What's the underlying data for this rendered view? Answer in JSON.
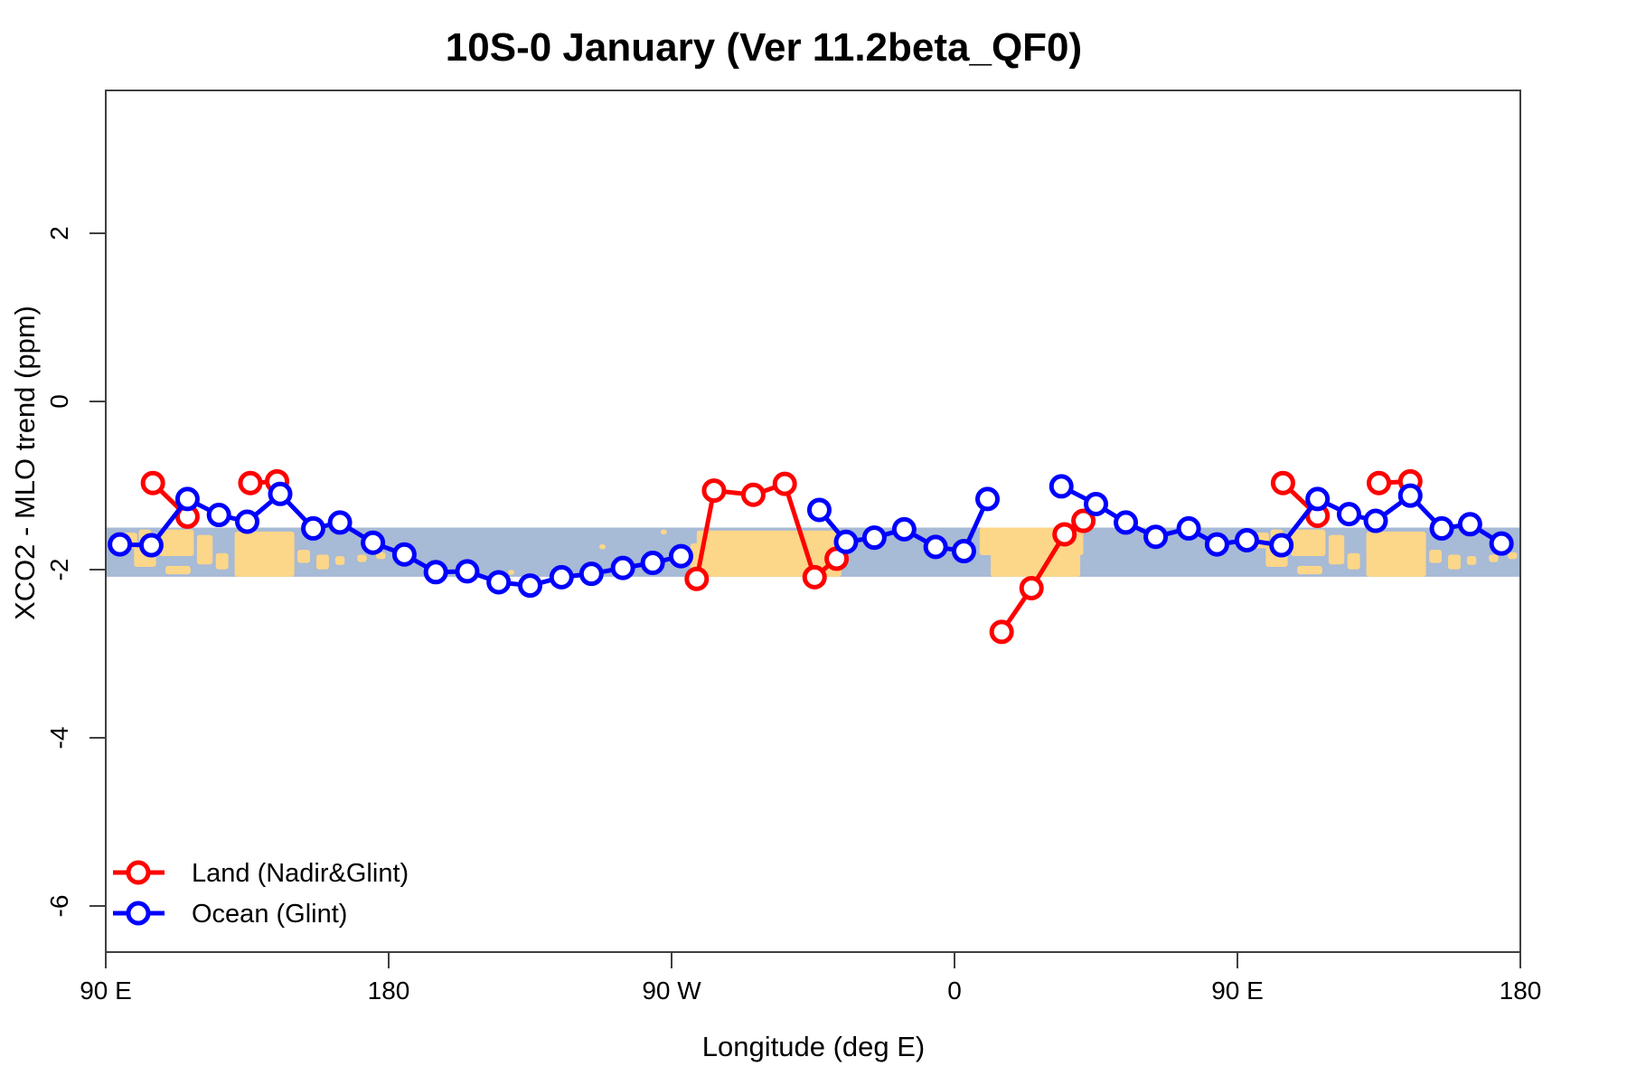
{
  "header": {
    "title": "10S-0 January (Ver 11.2beta_QF0)"
  },
  "chart_data": {
    "type": "line",
    "title": "10S-0 January (Ver 11.2beta_QF0)",
    "xlabel": "Longitude (deg E)",
    "ylabel": "XCO2 - MLO trend (ppm)",
    "x_axis": {
      "range_deg": [
        90,
        540
      ],
      "ticks": [
        {
          "lon": 90,
          "label": "90 E"
        },
        {
          "lon": 180,
          "label": "180"
        },
        {
          "lon": 270,
          "label": "90 W"
        },
        {
          "lon": 360,
          "label": "0"
        },
        {
          "lon": 450,
          "label": "90 E"
        },
        {
          "lon": 540,
          "label": "180"
        }
      ]
    },
    "y_axis": {
      "range_ppm": [
        3.7,
        -6.55
      ],
      "ticks": [
        {
          "value": 2,
          "label": "2"
        },
        {
          "value": 0,
          "label": "0"
        },
        {
          "value": -2,
          "label": "-2"
        },
        {
          "value": -4,
          "label": "-4"
        },
        {
          "value": -6,
          "label": "-6"
        }
      ]
    },
    "grid": "off",
    "legend_position": "bottom-left",
    "series": [
      {
        "name": "Land (Nadir&Glint)",
        "color": "#ff0000",
        "marker": "open-circle",
        "segments": [
          [
            [
              105,
              -0.97
            ],
            [
              116,
              -1.37
            ]
          ],
          [
            [
              136,
              -0.97
            ],
            [
              144.5,
              -0.95
            ]
          ],
          [
            [
              278,
              -2.11
            ],
            [
              283.5,
              -1.06
            ],
            [
              296,
              -1.11
            ],
            [
              306,
              -0.98
            ],
            [
              315.5,
              -2.09
            ],
            [
              322.5,
              -1.87
            ]
          ],
          [
            [
              375,
              -2.74
            ],
            [
              384.5,
              -2.22
            ],
            [
              395,
              -1.58
            ],
            [
              401,
              -1.42
            ]
          ],
          [
            [
              464.5,
              -0.97
            ],
            [
              475.5,
              -1.36
            ]
          ],
          [
            [
              495,
              -0.97
            ],
            [
              505,
              -0.95
            ]
          ]
        ]
      },
      {
        "name": "Ocean (Glint)",
        "color": "#0000ff",
        "marker": "open-circle",
        "segments": [
          [
            [
              94.5,
              -1.7
            ],
            [
              104.5,
              -1.71
            ],
            [
              116,
              -1.16
            ],
            [
              126,
              -1.35
            ],
            [
              135,
              -1.43
            ],
            [
              145.5,
              -1.1
            ],
            [
              156,
              -1.51
            ],
            [
              164.5,
              -1.44
            ],
            [
              175,
              -1.68
            ],
            [
              185,
              -1.82
            ],
            [
              195,
              -2.03
            ],
            [
              205,
              -2.02
            ],
            [
              215,
              -2.15
            ],
            [
              225,
              -2.19
            ],
            [
              235,
              -2.09
            ],
            [
              244.5,
              -2.05
            ],
            [
              254.5,
              -1.98
            ],
            [
              264,
              -1.92
            ],
            [
              273,
              -1.84
            ]
          ],
          [
            [
              317,
              -1.29
            ],
            [
              325.5,
              -1.67
            ],
            [
              334.5,
              -1.62
            ],
            [
              344,
              -1.52
            ],
            [
              354,
              -1.73
            ],
            [
              363,
              -1.78
            ],
            [
              370.5,
              -1.16
            ]
          ],
          [
            [
              394,
              -1.01
            ],
            [
              405,
              -1.22
            ],
            [
              414.5,
              -1.44
            ],
            [
              424,
              -1.61
            ],
            [
              434.5,
              -1.51
            ],
            [
              443.5,
              -1.7
            ],
            [
              453,
              -1.65
            ],
            [
              464,
              -1.71
            ],
            [
              475.5,
              -1.16
            ],
            [
              485.5,
              -1.34
            ],
            [
              494,
              -1.42
            ],
            [
              505,
              -1.12
            ],
            [
              515,
              -1.51
            ],
            [
              524,
              -1.46
            ],
            [
              534,
              -1.69
            ]
          ]
        ]
      }
    ],
    "map_band": {
      "ppm_top": -1.5,
      "ppm_bottom": -2.085,
      "ocean_color": "#a7bad6",
      "land_color": "#fcd689",
      "land_patches": [
        [
          95,
          100,
          0.1,
          0.42
        ],
        [
          99,
          106,
          0.34,
          0.8
        ],
        [
          100.5,
          104.5,
          0.04,
          0.3
        ],
        [
          107,
          118,
          0.04,
          0.58
        ],
        [
          109,
          117,
          0.78,
          0.95
        ],
        [
          119,
          124,
          0.15,
          0.75
        ],
        [
          125,
          129,
          0.52,
          0.85
        ],
        [
          131,
          150,
          0.08,
          1.0
        ],
        [
          151,
          155,
          0.45,
          0.72
        ],
        [
          157,
          161,
          0.55,
          0.85
        ],
        [
          163,
          166,
          0.58,
          0.76
        ],
        [
          170,
          173,
          0.55,
          0.7
        ],
        [
          176,
          179,
          0.5,
          0.64
        ],
        [
          185,
          187,
          0.42,
          0.52
        ],
        [
          201,
          203,
          0.78,
          0.88
        ],
        [
          218,
          220,
          0.86,
          0.96
        ],
        [
          247,
          249,
          0.34,
          0.44
        ],
        [
          266.5,
          268.5,
          0.04,
          0.14
        ],
        [
          276,
          279,
          0.32,
          0.95
        ],
        [
          278,
          324,
          0.06,
          1.0
        ],
        [
          368,
          401,
          0.0,
          0.56
        ],
        [
          371.5,
          400,
          0.5,
          1.0
        ],
        [
          455,
          460,
          0.1,
          0.42
        ],
        [
          459,
          466,
          0.34,
          0.8
        ],
        [
          460.5,
          464.5,
          0.04,
          0.3
        ],
        [
          467,
          478,
          0.04,
          0.58
        ],
        [
          469,
          477,
          0.78,
          0.95
        ],
        [
          479,
          484,
          0.15,
          0.75
        ],
        [
          485,
          489,
          0.52,
          0.85
        ],
        [
          491,
          510,
          0.08,
          1.0
        ],
        [
          511,
          515,
          0.45,
          0.72
        ],
        [
          517,
          521,
          0.55,
          0.85
        ],
        [
          523,
          526,
          0.58,
          0.76
        ],
        [
          530,
          533,
          0.55,
          0.7
        ],
        [
          536,
          539,
          0.5,
          0.64
        ]
      ]
    },
    "legend": {
      "entries": [
        {
          "label": "Land (Nadir&Glint)",
          "color": "#ff0000"
        },
        {
          "label": "Ocean (Glint)",
          "color": "#0000ff"
        }
      ]
    },
    "style": {
      "axis_color": "#404040",
      "text_color": "#000000",
      "line_width": 5,
      "marker_radius": 11,
      "marker_stroke": 5
    }
  }
}
